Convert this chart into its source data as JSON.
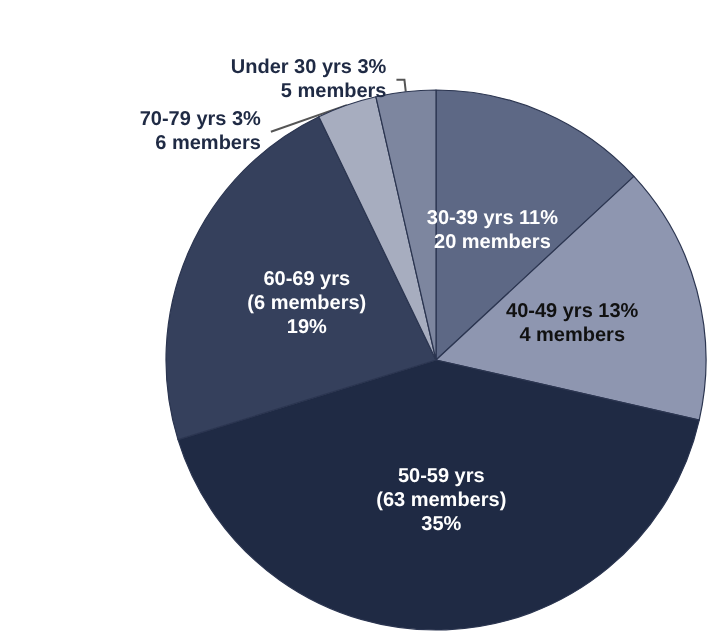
{
  "chart_data": {
    "type": "pie",
    "categories": [
      "30-39 yrs",
      "40-49 yrs",
      "50-59 yrs",
      "60-69 yrs",
      "70-79 yrs",
      "Under 30 yrs"
    ],
    "values": [
      11,
      13,
      35,
      19,
      3,
      3
    ],
    "colors": [
      "#5d6885",
      "#8e96b0",
      "#1f2a44",
      "#35405c",
      "#a7adbf",
      "#7d869f"
    ],
    "value_labels": [
      " 11%\n20 members",
      " 13%\n4 members",
      "\n(63 members)\n35%",
      "\n(6 members)\n19%",
      " 3%\n6 members",
      " 3%\n5 members"
    ]
  }
}
